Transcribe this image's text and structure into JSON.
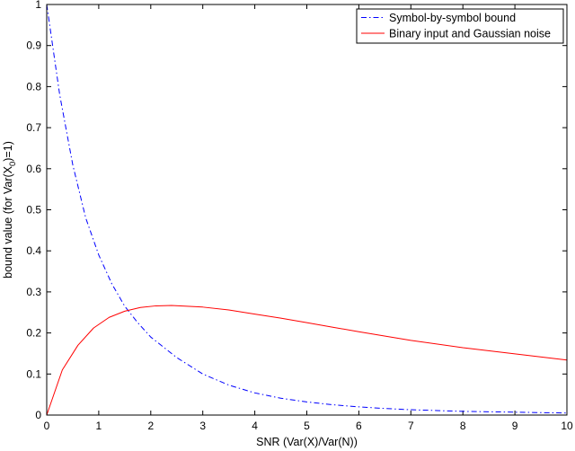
{
  "chart_data": {
    "type": "line",
    "xlabel": "SNR (Var(X)/Var(N))",
    "ylabel": {
      "prefix": "bound value (for Var(X",
      "subscript": "0",
      "suffix": ")=1)"
    },
    "xlim": [
      0,
      10
    ],
    "ylim": [
      0,
      1
    ],
    "xticks": [
      "0",
      "1",
      "2",
      "3",
      "4",
      "5",
      "6",
      "7",
      "8",
      "9",
      "10"
    ],
    "yticks": [
      "0",
      "0.1",
      "0.2",
      "0.3",
      "0.4",
      "0.5",
      "0.6",
      "0.7",
      "0.8",
      "0.9",
      "1"
    ],
    "grid": false,
    "legend_position": "top-right",
    "series": [
      {
        "name": "Symbol-by-symbol bound",
        "color": "#0000ff",
        "style": "dash-dot",
        "x": [
          0,
          0.25,
          0.5,
          0.75,
          1,
          1.25,
          1.5,
          1.75,
          2,
          2.5,
          3,
          3.5,
          4,
          4.5,
          5,
          5.5,
          6,
          6.5,
          7,
          7.5,
          8,
          8.5,
          9,
          9.5,
          10
        ],
        "y": [
          1.0,
          0.78,
          0.61,
          0.48,
          0.39,
          0.32,
          0.265,
          0.225,
          0.19,
          0.14,
          0.1,
          0.073,
          0.054,
          0.041,
          0.032,
          0.025,
          0.02,
          0.016,
          0.013,
          0.011,
          0.009,
          0.008,
          0.007,
          0.006,
          0.005
        ]
      },
      {
        "name": "Binary input and Gaussian noise",
        "color": "#ff0000",
        "style": "solid",
        "x": [
          0,
          0.3,
          0.6,
          0.9,
          1.2,
          1.5,
          1.8,
          2.1,
          2.4,
          3,
          3.5,
          4,
          4.5,
          5,
          5.5,
          6,
          7,
          8,
          9,
          10
        ],
        "y": [
          0,
          0.11,
          0.17,
          0.212,
          0.238,
          0.253,
          0.262,
          0.266,
          0.267,
          0.263,
          0.256,
          0.246,
          0.236,
          0.225,
          0.214,
          0.203,
          0.182,
          0.164,
          0.149,
          0.134
        ]
      }
    ]
  }
}
